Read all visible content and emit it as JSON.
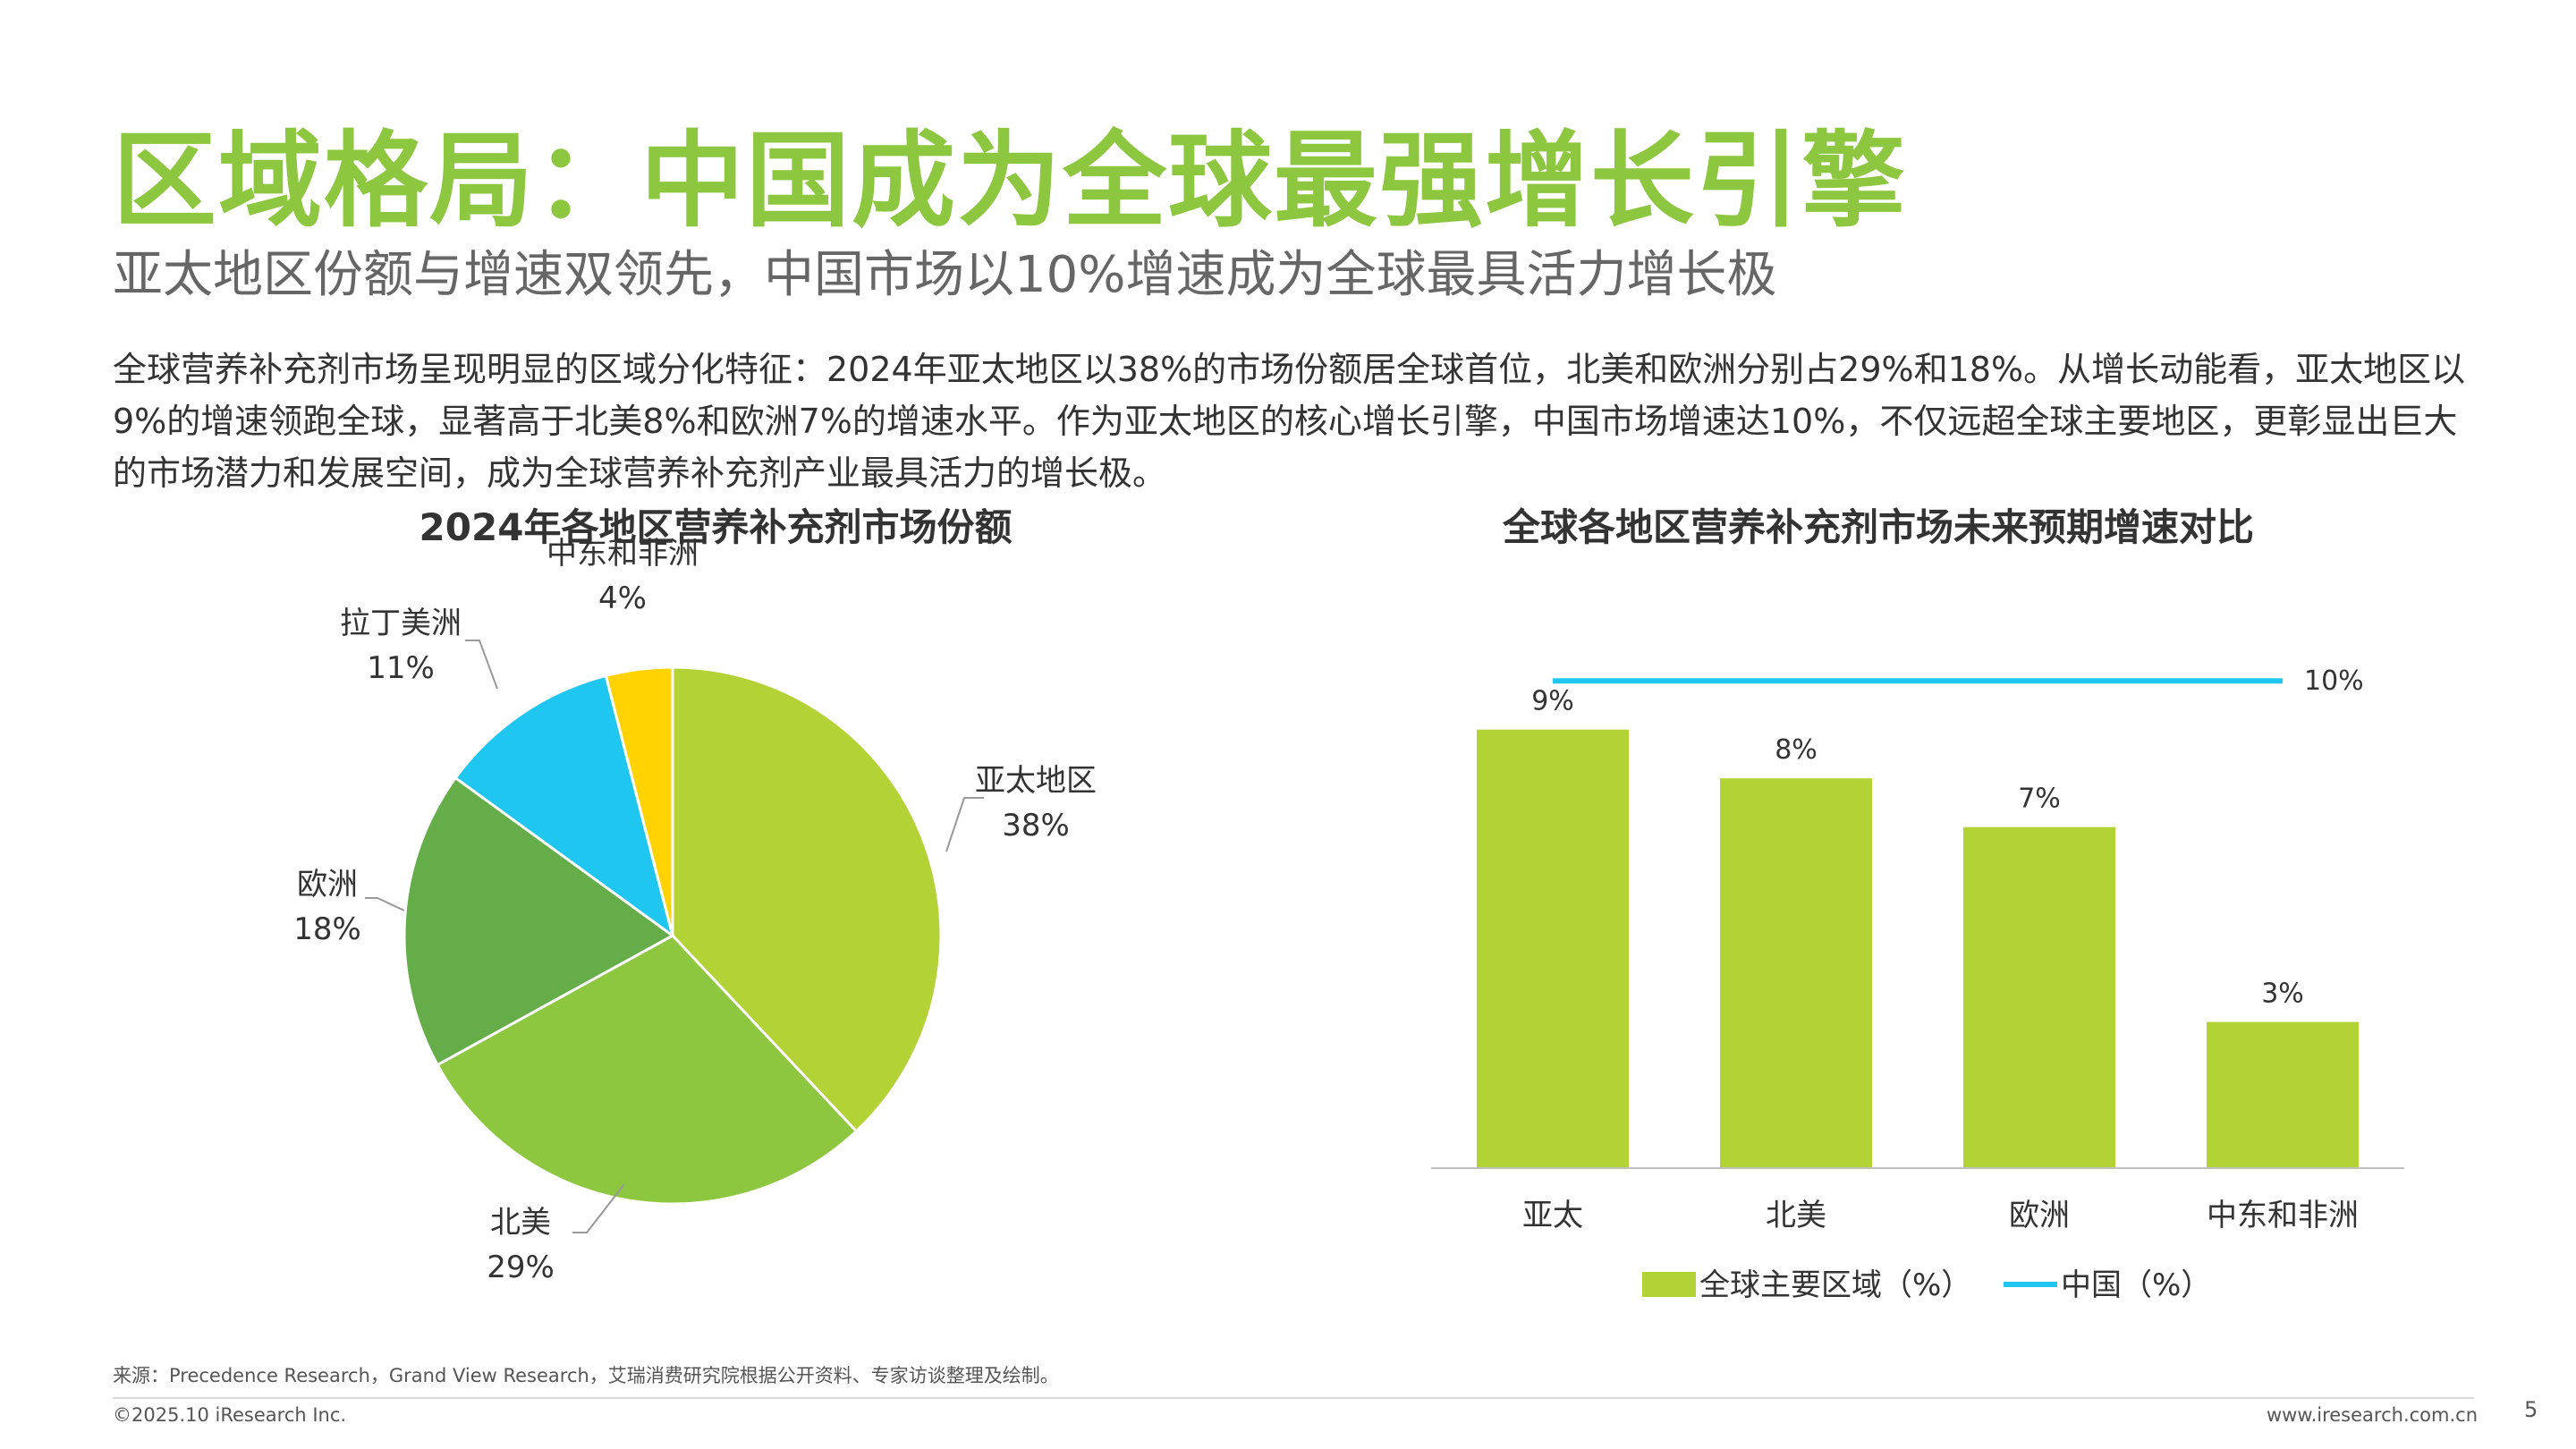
{
  "header": {
    "title": "区域格局：中国成为全球最强增长引擎",
    "subtitle": "亚太地区份额与增速双领先，中国市场以10%增速成为全球最具活力增长极"
  },
  "body_text": "全球营养补充剂市场呈现明显的区域分化特征：2024年亚太地区以38%的市场份额居全球首位，北美和欧洲分别占29%和18%。从增长动能看，亚太地区以9%的增速领跑全球，显著高于北美8%和欧洲7%的增速水平。作为亚太地区的核心增长引擎，中国市场增速达10%，不仅远超全球主要地区，更彰显出巨大的市场潜力和发展空间，成为全球营养补充剂产业最具活力的增长极。",
  "footer": {
    "source": "来源：Precedence Research，Grand View Research，艾瑞消费研究院根据公开资料、专家访谈整理及绘制。",
    "copyright": "©2025.10 iResearch Inc.",
    "website": "www.iresearch.com.cn",
    "page_number": "5"
  },
  "chart_data": [
    {
      "type": "pie",
      "title": "2024年各地区营养补充剂市场份额",
      "slices": [
        {
          "label": "亚太地区",
          "value": 38,
          "value_label": "38%",
          "color": "#b2d235"
        },
        {
          "label": "北美",
          "value": 29,
          "value_label": "29%",
          "color": "#8dc63f"
        },
        {
          "label": "欧洲",
          "value": 18,
          "value_label": "18%",
          "color": "#64ad48"
        },
        {
          "label": "拉丁美洲",
          "value": 11,
          "value_label": "11%",
          "color": "#1fc6f0"
        },
        {
          "label": "中东和非洲",
          "value": 4,
          "value_label": "4%",
          "color": "#ffd200"
        }
      ]
    },
    {
      "type": "bar",
      "title": "全球各地区营养补充剂市场未来预期增速对比",
      "categories": [
        "亚太",
        "北美",
        "欧洲",
        "中东和非洲"
      ],
      "series": [
        {
          "name": "全球主要区域（%）",
          "values": [
            9,
            8,
            7,
            3
          ],
          "value_labels": [
            "9%",
            "8%",
            "7%",
            "3%"
          ],
          "color": "#b2d235",
          "kind": "bar"
        },
        {
          "name": "中国（%）",
          "values": [
            10,
            10,
            10,
            10
          ],
          "value_label": "10%",
          "color": "#1fc6f0",
          "kind": "line"
        }
      ],
      "ylim": [
        0,
        10.5
      ],
      "legend_position": "bottom"
    }
  ]
}
